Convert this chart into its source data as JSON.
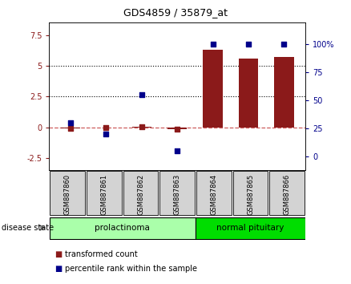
{
  "title": "GDS4859 / 35879_at",
  "samples": [
    "GSM887860",
    "GSM887861",
    "GSM887862",
    "GSM887863",
    "GSM887864",
    "GSM887865",
    "GSM887866"
  ],
  "transformed_count": [
    -0.08,
    -0.05,
    0.05,
    -0.12,
    6.3,
    5.6,
    5.75
  ],
  "percentile_rank": [
    30,
    20,
    55,
    5,
    100,
    100,
    100
  ],
  "bar_color": "#8B1A1A",
  "dot_color_red": "#8B1A1A",
  "dot_color_blue": "#00008B",
  "groups": [
    {
      "label": "prolactinoma",
      "start": 0,
      "end": 3,
      "color": "#AAFFAA"
    },
    {
      "label": "normal pituitary",
      "start": 4,
      "end": 6,
      "color": "#00DD00"
    }
  ],
  "ylim_left": [
    -3.5,
    8.5
  ],
  "ylim_right": [
    -12.5,
    118.75
  ],
  "yticks_left": [
    -2.5,
    0,
    2.5,
    5.0,
    7.5
  ],
  "yticks_right": [
    0,
    25,
    50,
    75,
    100
  ],
  "hlines": [
    2.5,
    5.0
  ],
  "zero_line_color": "#CD5C5C",
  "background_plot": "#FFFFFF",
  "background_sample": "#D3D3D3",
  "disease_state_label": "disease state",
  "legend_items": [
    {
      "label": "transformed count",
      "color": "#8B1A1A"
    },
    {
      "label": "percentile rank within the sample",
      "color": "#00008B"
    }
  ]
}
